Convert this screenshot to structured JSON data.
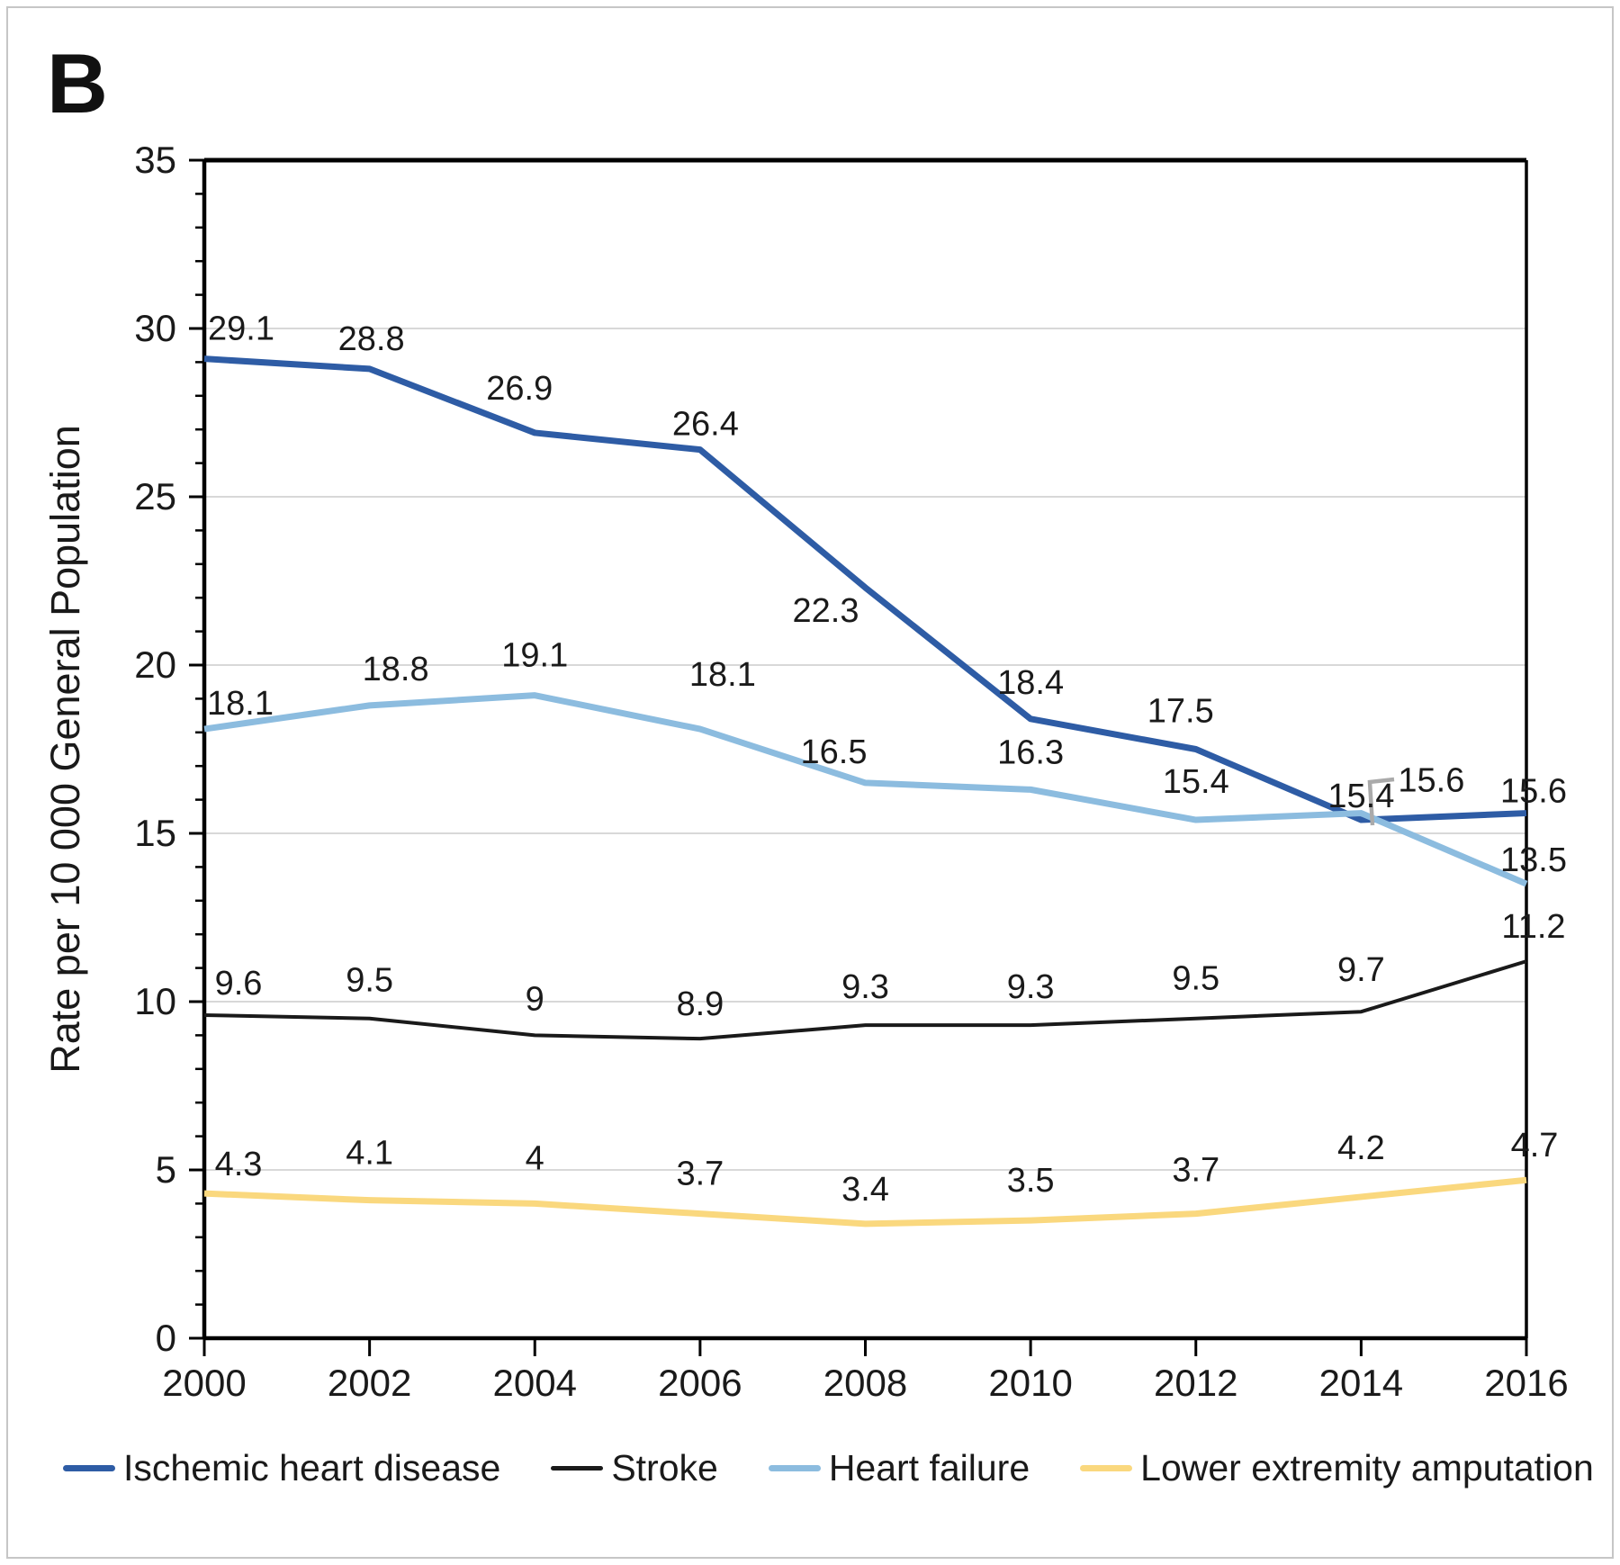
{
  "figure": {
    "panel_label": "B"
  },
  "chart_data": {
    "type": "line",
    "panel_label": "B",
    "title": "",
    "xlabel": "",
    "ylabel": "Rate per 10 000 General Population",
    "ylim": [
      0,
      35
    ],
    "y_tick_step": 5,
    "y_minor_tick_step": 1,
    "grid": "horizontal-major",
    "legend_position": "bottom",
    "x": [
      2000,
      2002,
      2004,
      2006,
      2008,
      2010,
      2012,
      2014,
      2016
    ],
    "x_tick_labels": [
      "2000",
      "2002",
      "2004",
      "2006",
      "2008",
      "2010",
      "2012",
      "2014",
      "2016"
    ],
    "y_tick_labels": [
      "0",
      "5",
      "10",
      "15",
      "20",
      "25",
      "30",
      "35"
    ],
    "series": [
      {
        "name": "Ischemic heart disease",
        "color": "#2E5CA5",
        "line_width": 7,
        "values": [
          29.1,
          28.8,
          26.9,
          26.4,
          22.3,
          18.4,
          17.5,
          15.4,
          15.6
        ],
        "data_labels": [
          "29.1",
          "28.8",
          "26.9",
          "26.4",
          "22.3",
          "18.4",
          "17.5",
          "15.4",
          "15.6"
        ]
      },
      {
        "name": "Stroke",
        "color": "#1A1A1A",
        "line_width": 4,
        "values": [
          9.6,
          9.5,
          9,
          8.9,
          9.3,
          9.3,
          9.5,
          9.7,
          11.2
        ],
        "data_labels": [
          "9.6",
          "9.5",
          "9",
          "8.9",
          "9.3",
          "9.3",
          "9.5",
          "9.7",
          "11.2"
        ]
      },
      {
        "name": "Heart failure",
        "color": "#8CBCDF",
        "line_width": 7,
        "values": [
          18.1,
          18.8,
          19.1,
          18.1,
          16.5,
          16.3,
          15.4,
          15.6,
          13.5
        ],
        "data_labels": [
          "18.1",
          "18.8",
          "19.1",
          "18.1",
          "16.5",
          "16.3",
          "15.4",
          "15.6",
          "13.5"
        ]
      },
      {
        "name": "Lower extremity amputation",
        "color": "#FAD87E",
        "line_width": 7,
        "values": [
          4.3,
          4.1,
          4,
          3.7,
          3.4,
          3.5,
          3.7,
          4.2,
          4.7
        ],
        "data_labels": [
          "4.3",
          "4.1",
          "4",
          "3.7",
          "3.4",
          "3.5",
          "3.7",
          "4.2",
          "4.7"
        ]
      }
    ],
    "colors": {
      "grid": "#D8D8D8",
      "axis": "#000000",
      "data_label": "#1A1A1A",
      "leader_line": "#AAAAAA",
      "frame_border": "#C6C6C6"
    }
  }
}
